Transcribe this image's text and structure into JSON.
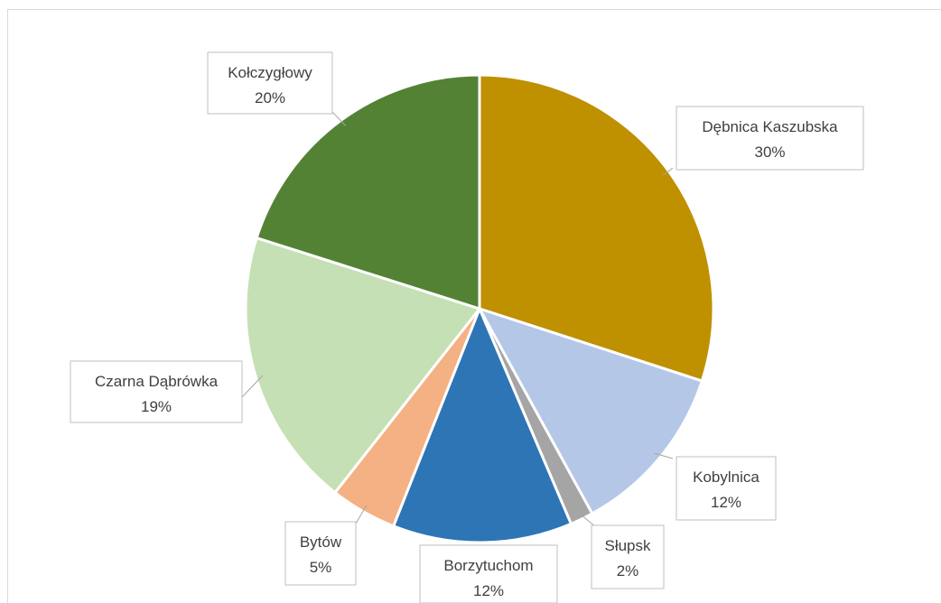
{
  "chart_data": {
    "type": "pie",
    "title": "",
    "slices": [
      {
        "label": "Dębnica Kaszubska",
        "percent_label": "30%",
        "value": 30,
        "color": "#bf9000"
      },
      {
        "label": "Kobylnica",
        "percent_label": "12%",
        "value": 12,
        "color": "#b4c7e7"
      },
      {
        "label": "Słupsk",
        "percent_label": "2%",
        "value": 1.6,
        "color": "#a5a5a5"
      },
      {
        "label": "Borzytuchom",
        "percent_label": "12%",
        "value": 12.4,
        "color": "#2e75b6"
      },
      {
        "label": "Bytów",
        "percent_label": "5%",
        "value": 4.6,
        "color": "#f4b183"
      },
      {
        "label": "Czarna Dąbrówka",
        "percent_label": "19%",
        "value": 19.3,
        "color": "#c5e0b4"
      },
      {
        "label": "Kołczygłowy",
        "percent_label": "20%",
        "value": 20.1,
        "color": "#548235"
      }
    ],
    "start_angle_deg": 0,
    "direction": "clockwise",
    "legend": "none",
    "data_labels": "callouts"
  }
}
